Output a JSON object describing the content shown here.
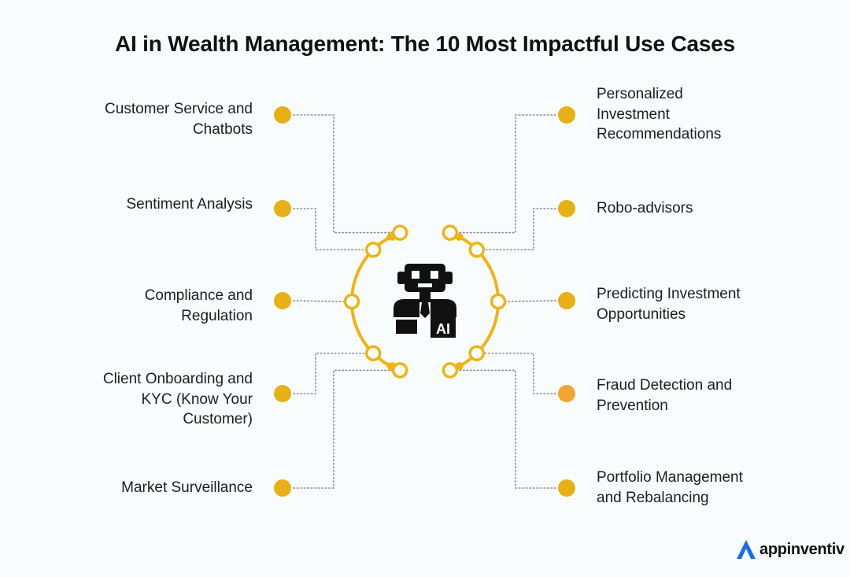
{
  "title": "AI in Wealth Management: The 10 Most Impactful Use Cases",
  "colors": {
    "node": "#e8b015",
    "node_highlight": "#f3a531",
    "ring": "#efb413",
    "connector": "#8c8c8c",
    "background": "#f8fcfc",
    "logo_blue": "#1b6ee8"
  },
  "center_icon": "robot-ai-icon",
  "use_cases_left": [
    {
      "label": "Customer Service and\nChatbots"
    },
    {
      "label": "Sentiment Analysis"
    },
    {
      "label": "Compliance and\nRegulation"
    },
    {
      "label": "Client Onboarding and\nKYC (Know Your\nCustomer)"
    },
    {
      "label": "Market Surveillance"
    }
  ],
  "use_cases_right": [
    {
      "label": "Personalized\nInvestment\nRecommendations"
    },
    {
      "label": "Robo-advisors"
    },
    {
      "label": "Predicting Investment\nOpportunities"
    },
    {
      "label": "Fraud Detection and\nPrevention"
    },
    {
      "label": "Portfolio Management\nand Rebalancing"
    }
  ],
  "brand": {
    "name": "appinventiv",
    "logo_icon": "appinventiv-logo-icon"
  }
}
